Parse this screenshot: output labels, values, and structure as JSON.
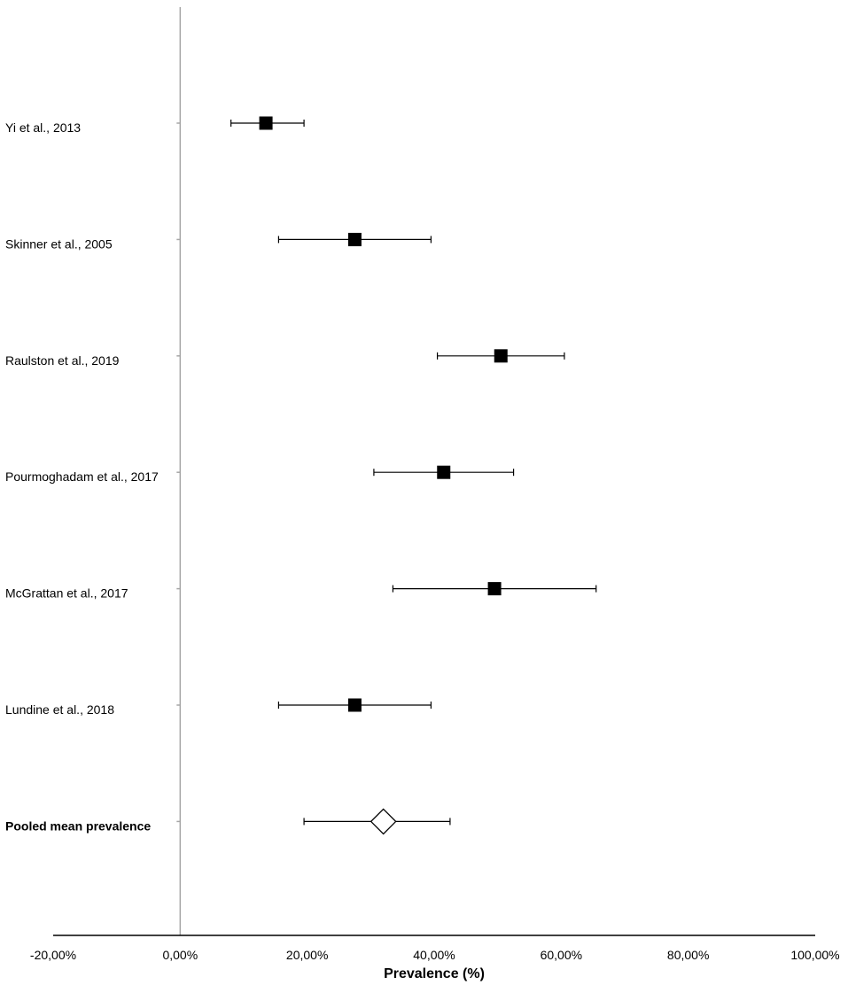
{
  "chart_data": {
    "type": "forest",
    "xlabel": "Prevalence (%)",
    "xlim": [
      -20,
      100
    ],
    "xticks": [
      {
        "value": -20,
        "label": "-20,00%"
      },
      {
        "value": 0,
        "label": "0,00%"
      },
      {
        "value": 20,
        "label": "20,00%"
      },
      {
        "value": 40,
        "label": "40,00%"
      },
      {
        "value": 60,
        "label": "60,00%"
      },
      {
        "value": 80,
        "label": "80,00%"
      },
      {
        "value": 100,
        "label": "100,00%"
      }
    ],
    "studies": [
      {
        "label": "Yi et al., 2013",
        "estimate": 13.5,
        "ci_low": 8.0,
        "ci_high": 19.5,
        "marker": "square"
      },
      {
        "label": "Skinner et al., 2005",
        "estimate": 27.5,
        "ci_low": 15.5,
        "ci_high": 39.5,
        "marker": "square"
      },
      {
        "label": "Raulston et al., 2019",
        "estimate": 50.5,
        "ci_low": 40.5,
        "ci_high": 60.5,
        "marker": "square"
      },
      {
        "label": "Pourmoghadam et al., 2017",
        "estimate": 41.5,
        "ci_low": 30.5,
        "ci_high": 52.5,
        "marker": "square"
      },
      {
        "label": "McGrattan et al., 2017",
        "estimate": 49.5,
        "ci_low": 33.5,
        "ci_high": 65.5,
        "marker": "square"
      },
      {
        "label": "Lundine et al., 2018",
        "estimate": 27.5,
        "ci_low": 15.5,
        "ci_high": 39.5,
        "marker": "square"
      }
    ],
    "pooled": {
      "label": "Pooled mean prevalence",
      "estimate": 32.0,
      "ci_low": 19.5,
      "ci_high": 42.5,
      "marker": "diamond"
    },
    "colors": {
      "marker": "#000000",
      "axis": "#000000",
      "vertical_line": "#a6a6a6"
    }
  }
}
